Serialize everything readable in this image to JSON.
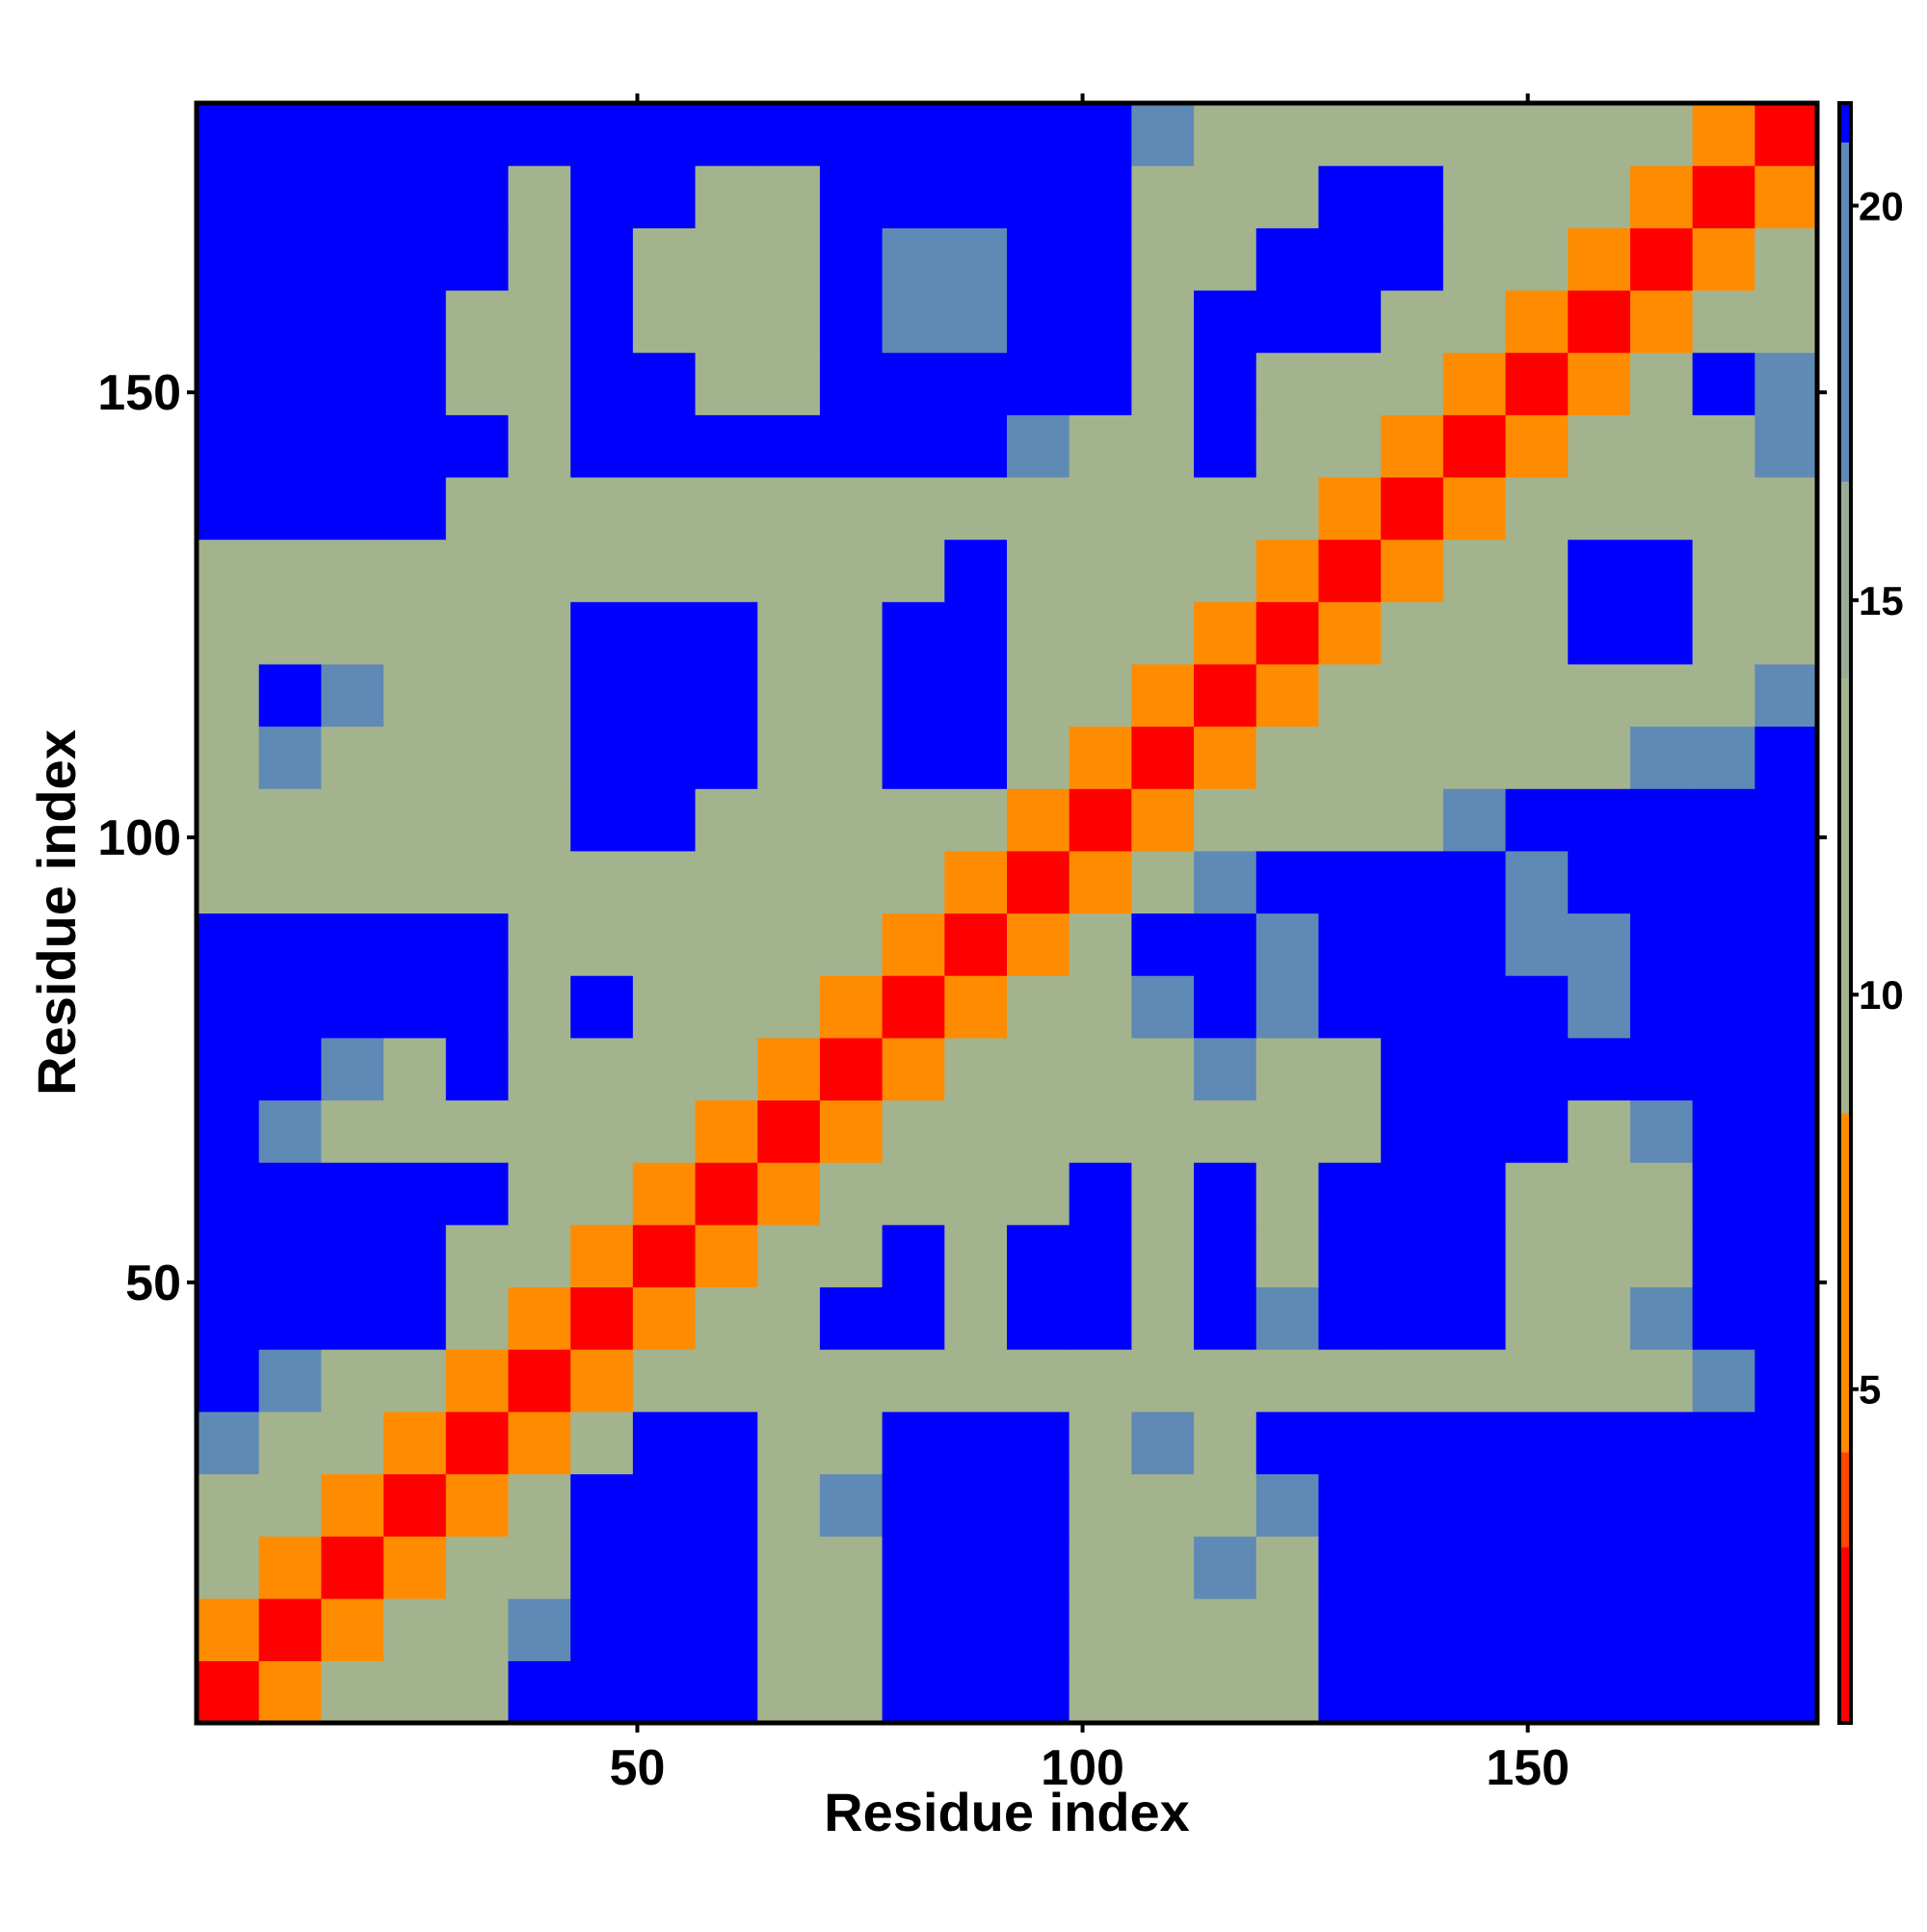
{
  "chart_data": {
    "type": "heatmap",
    "xlabel": "Residue index",
    "ylabel": "Residue index",
    "xlim": [
      0.5,
      182.5
    ],
    "ylim": [
      0.5,
      182.5
    ],
    "xticks": [
      50,
      100,
      150
    ],
    "yticks": [
      50,
      100,
      150
    ],
    "x": [
      4,
      11,
      18,
      25,
      32,
      39,
      46,
      53,
      60,
      67,
      74,
      81,
      88,
      95,
      102,
      109,
      116,
      123,
      130,
      137,
      144,
      151,
      158,
      165,
      172,
      179
    ],
    "y": [
      4,
      11,
      18,
      25,
      32,
      39,
      46,
      53,
      60,
      67,
      74,
      81,
      88,
      95,
      102,
      109,
      116,
      123,
      130,
      137,
      144,
      151,
      158,
      165,
      172,
      179
    ],
    "z": [
      [
        2,
        8,
        12,
        12,
        12,
        21,
        21,
        21,
        21,
        12,
        12,
        21,
        21,
        21,
        12,
        12,
        12,
        12,
        21,
        21,
        21,
        21,
        21,
        21,
        21,
        21
      ],
      [
        8,
        2,
        8,
        12,
        12,
        17,
        21,
        21,
        21,
        12,
        12,
        21,
        21,
        21,
        12,
        12,
        12,
        12,
        21,
        21,
        21,
        21,
        21,
        21,
        21,
        21
      ],
      [
        12,
        8,
        2,
        8,
        12,
        12,
        21,
        21,
        21,
        12,
        12,
        21,
        21,
        21,
        12,
        12,
        17,
        12,
        21,
        21,
        21,
        21,
        21,
        21,
        21,
        21
      ],
      [
        12,
        12,
        8,
        2,
        8,
        12,
        21,
        21,
        21,
        12,
        17,
        21,
        21,
        21,
        12,
        12,
        12,
        17,
        21,
        21,
        21,
        21,
        21,
        21,
        21,
        21
      ],
      [
        17,
        12,
        12,
        8,
        2,
        8,
        12,
        21,
        21,
        12,
        12,
        21,
        21,
        21,
        12,
        17,
        12,
        21,
        21,
        21,
        21,
        21,
        21,
        21,
        21,
        21
      ],
      [
        21,
        17,
        12,
        12,
        8,
        2,
        8,
        12,
        12,
        12,
        12,
        12,
        12,
        12,
        12,
        12,
        12,
        12,
        12,
        12,
        12,
        12,
        12,
        12,
        17,
        21
      ],
      [
        21,
        21,
        21,
        21,
        12,
        8,
        2,
        8,
        12,
        12,
        21,
        21,
        12,
        21,
        21,
        12,
        21,
        17,
        21,
        21,
        21,
        12,
        12,
        17,
        21,
        21
      ],
      [
        21,
        21,
        21,
        21,
        12,
        12,
        8,
        2,
        8,
        12,
        12,
        21,
        12,
        21,
        21,
        12,
        21,
        12,
        21,
        21,
        21,
        12,
        12,
        12,
        21,
        21
      ],
      [
        21,
        21,
        21,
        21,
        21,
        12,
        12,
        8,
        2,
        8,
        12,
        12,
        12,
        12,
        21,
        12,
        21,
        12,
        21,
        21,
        21,
        12,
        12,
        12,
        21,
        21
      ],
      [
        21,
        17,
        12,
        12,
        12,
        12,
        12,
        12,
        8,
        2,
        8,
        12,
        12,
        12,
        12,
        12,
        12,
        12,
        12,
        21,
        21,
        21,
        12,
        17,
        21,
        21
      ],
      [
        21,
        21,
        17,
        12,
        21,
        12,
        12,
        12,
        12,
        8,
        2,
        8,
        12,
        12,
        12,
        12,
        17,
        12,
        12,
        21,
        21,
        21,
        21,
        21,
        21,
        21
      ],
      [
        21,
        21,
        21,
        21,
        21,
        12,
        21,
        12,
        12,
        12,
        8,
        2,
        8,
        12,
        12,
        17,
        21,
        17,
        21,
        21,
        21,
        21,
        17,
        21,
        21,
        21
      ],
      [
        21,
        21,
        21,
        21,
        21,
        12,
        12,
        12,
        12,
        12,
        12,
        8,
        2,
        8,
        12,
        21,
        21,
        17,
        21,
        21,
        21,
        17,
        17,
        21,
        21,
        21
      ],
      [
        12,
        12,
        12,
        12,
        12,
        12,
        12,
        12,
        12,
        12,
        12,
        12,
        8,
        2,
        8,
        12,
        17,
        21,
        21,
        21,
        21,
        17,
        21,
        21,
        21,
        21
      ],
      [
        12,
        12,
        12,
        12,
        12,
        12,
        21,
        21,
        12,
        12,
        12,
        12,
        12,
        8,
        2,
        8,
        12,
        12,
        12,
        12,
        17,
        21,
        21,
        21,
        21,
        21
      ],
      [
        12,
        17,
        12,
        12,
        12,
        12,
        21,
        21,
        21,
        12,
        12,
        21,
        21,
        12,
        8,
        2,
        8,
        12,
        12,
        12,
        12,
        12,
        12,
        17,
        17,
        21
      ],
      [
        12,
        21,
        17,
        12,
        12,
        12,
        21,
        21,
        21,
        12,
        12,
        21,
        21,
        12,
        12,
        8,
        2,
        8,
        12,
        12,
        12,
        12,
        12,
        12,
        12,
        17
      ],
      [
        12,
        12,
        12,
        12,
        12,
        12,
        21,
        21,
        21,
        12,
        12,
        21,
        21,
        12,
        12,
        12,
        8,
        2,
        8,
        12,
        12,
        12,
        21,
        21,
        12,
        12
      ],
      [
        12,
        12,
        12,
        12,
        12,
        12,
        12,
        12,
        12,
        12,
        12,
        12,
        21,
        12,
        12,
        12,
        12,
        8,
        2,
        8,
        12,
        12,
        21,
        21,
        12,
        12
      ],
      [
        21,
        21,
        21,
        21,
        12,
        12,
        12,
        12,
        12,
        12,
        12,
        12,
        12,
        12,
        12,
        12,
        12,
        12,
        8,
        2,
        8,
        12,
        12,
        12,
        12,
        12
      ],
      [
        21,
        21,
        21,
        21,
        21,
        12,
        21,
        21,
        21,
        21,
        21,
        21,
        21,
        17,
        12,
        12,
        21,
        12,
        12,
        8,
        2,
        8,
        12,
        12,
        12,
        17
      ],
      [
        21,
        21,
        21,
        21,
        12,
        12,
        21,
        21,
        12,
        12,
        21,
        21,
        21,
        21,
        21,
        12,
        21,
        12,
        12,
        12,
        8,
        2,
        8,
        12,
        21,
        17
      ],
      [
        21,
        21,
        21,
        21,
        12,
        12,
        21,
        12,
        12,
        12,
        21,
        17,
        17,
        21,
        21,
        12,
        21,
        21,
        21,
        12,
        12,
        8,
        2,
        8,
        12,
        12
      ],
      [
        21,
        21,
        21,
        21,
        21,
        12,
        21,
        12,
        12,
        12,
        21,
        17,
        17,
        21,
        21,
        12,
        12,
        21,
        21,
        21,
        12,
        12,
        8,
        2,
        8,
        12
      ],
      [
        21,
        21,
        21,
        21,
        21,
        12,
        21,
        21,
        12,
        12,
        21,
        21,
        21,
        21,
        21,
        12,
        12,
        12,
        21,
        21,
        12,
        12,
        12,
        8,
        2,
        8
      ],
      [
        21,
        21,
        21,
        21,
        21,
        21,
        21,
        21,
        21,
        21,
        21,
        21,
        21,
        21,
        21,
        17,
        12,
        12,
        12,
        12,
        12,
        12,
        12,
        12,
        8,
        2
      ]
    ],
    "colorbar": {
      "zlim": [
        0.77,
        21.3
      ],
      "ticks": [
        5,
        10,
        15,
        20
      ],
      "colorscale": [
        [
          0.77,
          "#ff0000"
        ],
        [
          3,
          "#ff4500"
        ],
        [
          4.2,
          "#ff8c00"
        ],
        [
          8.5,
          "#a3b38d"
        ],
        [
          14,
          "#97ad96"
        ],
        [
          16.5,
          "#5f8ab5"
        ],
        [
          20.8,
          "#0000ff"
        ]
      ]
    }
  }
}
